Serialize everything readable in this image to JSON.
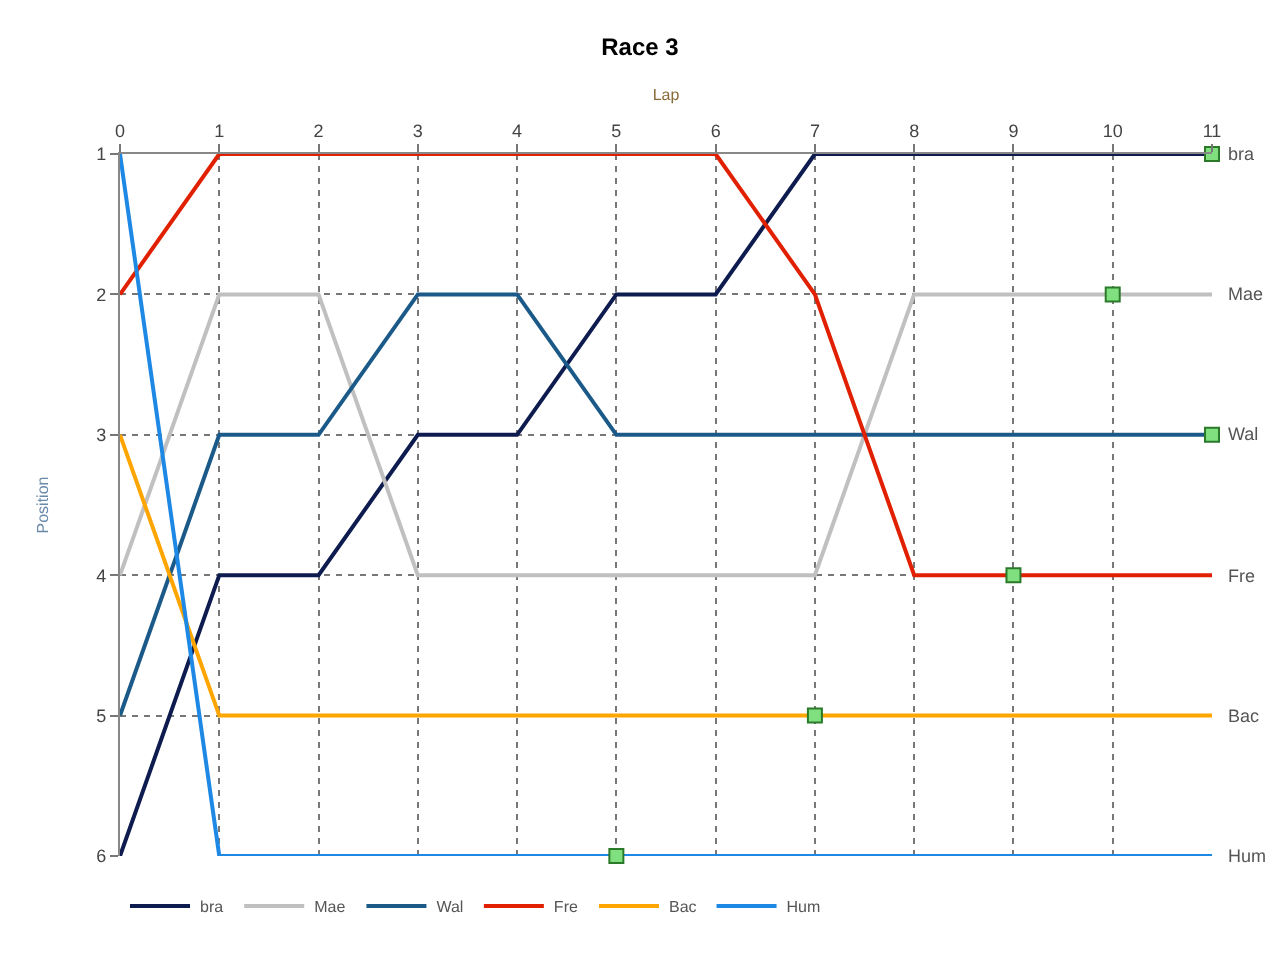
{
  "chart_data": {
    "type": "line",
    "title": "Race 3",
    "xlabel": "Lap",
    "ylabel": "Position",
    "x": [
      0,
      1,
      2,
      3,
      4,
      5,
      6,
      7,
      8,
      9,
      10,
      11
    ],
    "xlim": [
      0,
      11
    ],
    "xticks": [
      0,
      1,
      2,
      3,
      4,
      5,
      6,
      7,
      8,
      9,
      10,
      11
    ],
    "ylim": [
      6,
      1
    ],
    "yticks": [
      1,
      2,
      3,
      4,
      5,
      6
    ],
    "grid": true,
    "legend": "bottom left",
    "marker": "none",
    "line_style": "solid",
    "series": [
      {
        "name": "bra",
        "color": "#0d1b4f",
        "values": [
          6,
          4,
          4,
          3,
          3,
          2,
          2,
          1,
          1,
          1,
          1,
          1
        ]
      },
      {
        "name": "Mae",
        "color": "#c0c0c0",
        "values": [
          4,
          2,
          2,
          4,
          4,
          4,
          4,
          4,
          2,
          2,
          2,
          2
        ]
      },
      {
        "name": "Wal",
        "color": "#1b5a88",
        "values": [
          5,
          3,
          3,
          2,
          2,
          3,
          3,
          3,
          3,
          3,
          3,
          3
        ]
      },
      {
        "name": "Fre",
        "color": "#e02000",
        "values": [
          2,
          1,
          1,
          1,
          1,
          1,
          1,
          2,
          4,
          4,
          4,
          4
        ]
      },
      {
        "name": "Bac",
        "color": "#ffa500",
        "values": [
          3,
          5,
          5,
          5,
          5,
          5,
          5,
          5,
          5,
          5,
          5,
          5
        ]
      },
      {
        "name": "Hum",
        "color": "#1e88e5",
        "values": [
          1,
          6,
          6,
          6,
          6,
          6,
          6,
          6,
          6,
          6,
          6,
          6
        ]
      },
      {
        "type": "scatter",
        "marker": "square",
        "color": "#80e080",
        "x": [
          11,
          10,
          11,
          9,
          7,
          5
        ],
        "values": [
          1,
          2,
          3,
          4,
          5,
          6
        ]
      }
    ]
  }
}
